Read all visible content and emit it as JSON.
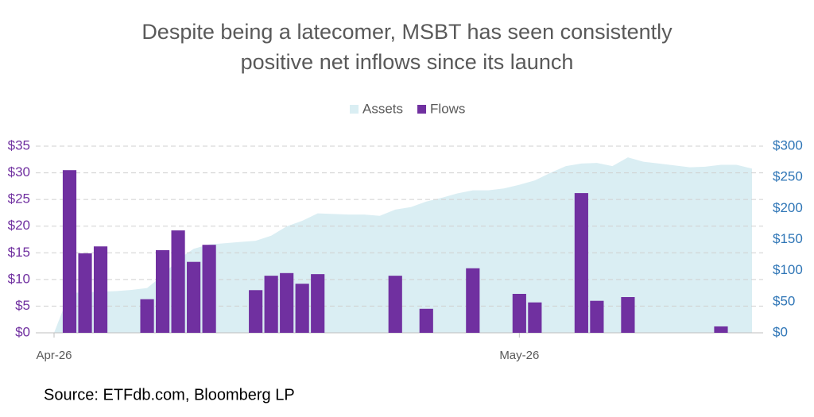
{
  "chart_data": {
    "type": "bar-area",
    "title": [
      "Despite being a latecomer, MSBT has seen consistently",
      "positive net inflows since its launch"
    ],
    "source": "Source: ETFdb.com, Bloomberg LP",
    "categories": [
      "Apr-26",
      null,
      null,
      null,
      null,
      null,
      null,
      null,
      null,
      null,
      null,
      null,
      null,
      null,
      null,
      null,
      null,
      null,
      null,
      null,
      null,
      null,
      null,
      null,
      null,
      null,
      null,
      null,
      null,
      null,
      "May-26",
      null,
      null,
      null,
      null,
      null,
      null,
      null,
      null,
      null,
      null,
      null,
      null,
      null,
      null,
      null
    ],
    "series": [
      {
        "name": "Assets",
        "type": "area",
        "axis": "y2",
        "color": "#daeef3",
        "values": [
          0,
          64,
          65,
          66,
          67,
          69,
          72,
          92,
          118,
          135,
          142,
          144,
          146,
          148,
          156,
          171,
          180,
          192,
          191,
          190,
          190,
          188,
          198,
          202,
          211,
          217,
          224,
          229,
          229,
          232,
          238,
          245,
          257,
          268,
          272,
          273,
          268,
          282,
          275,
          272,
          269,
          266,
          267,
          270,
          270,
          264
        ]
      },
      {
        "name": "Flows",
        "type": "bar",
        "axis": "y",
        "color": "#7030a0",
        "values": [
          null,
          30.5,
          14.9,
          16.2,
          null,
          null,
          6.3,
          15.5,
          19.2,
          13.3,
          16.5,
          null,
          null,
          8.0,
          10.7,
          11.2,
          9.2,
          11.0,
          null,
          null,
          null,
          null,
          10.7,
          null,
          4.5,
          null,
          null,
          12.1,
          null,
          null,
          7.3,
          5.7,
          null,
          null,
          26.2,
          6.0,
          null,
          6.7,
          null,
          null,
          null,
          null,
          null,
          1.2,
          null,
          null
        ]
      }
    ],
    "ylim": [
      0,
      35
    ],
    "yticks": [
      {
        "value": 0,
        "label": "$0"
      },
      {
        "value": 5,
        "label": "$5"
      },
      {
        "value": 10,
        "label": "$10"
      },
      {
        "value": 15,
        "label": "$15"
      },
      {
        "value": 20,
        "label": "$20"
      },
      {
        "value": 25,
        "label": "$25"
      },
      {
        "value": 30,
        "label": "$30"
      },
      {
        "value": 35,
        "label": "$35"
      }
    ],
    "y2lim": [
      0,
      300
    ],
    "y2ticks": [
      {
        "value": 0,
        "label": "$0"
      },
      {
        "value": 50,
        "label": "$50"
      },
      {
        "value": 100,
        "label": "$100"
      },
      {
        "value": 150,
        "label": "$150"
      },
      {
        "value": 200,
        "label": "$200"
      },
      {
        "value": 250,
        "label": "$250"
      },
      {
        "value": 300,
        "label": "$300"
      }
    ],
    "ytick_color": "#7030a0",
    "y2tick_color": "#2e75b6",
    "grid": true,
    "legend": "top"
  }
}
